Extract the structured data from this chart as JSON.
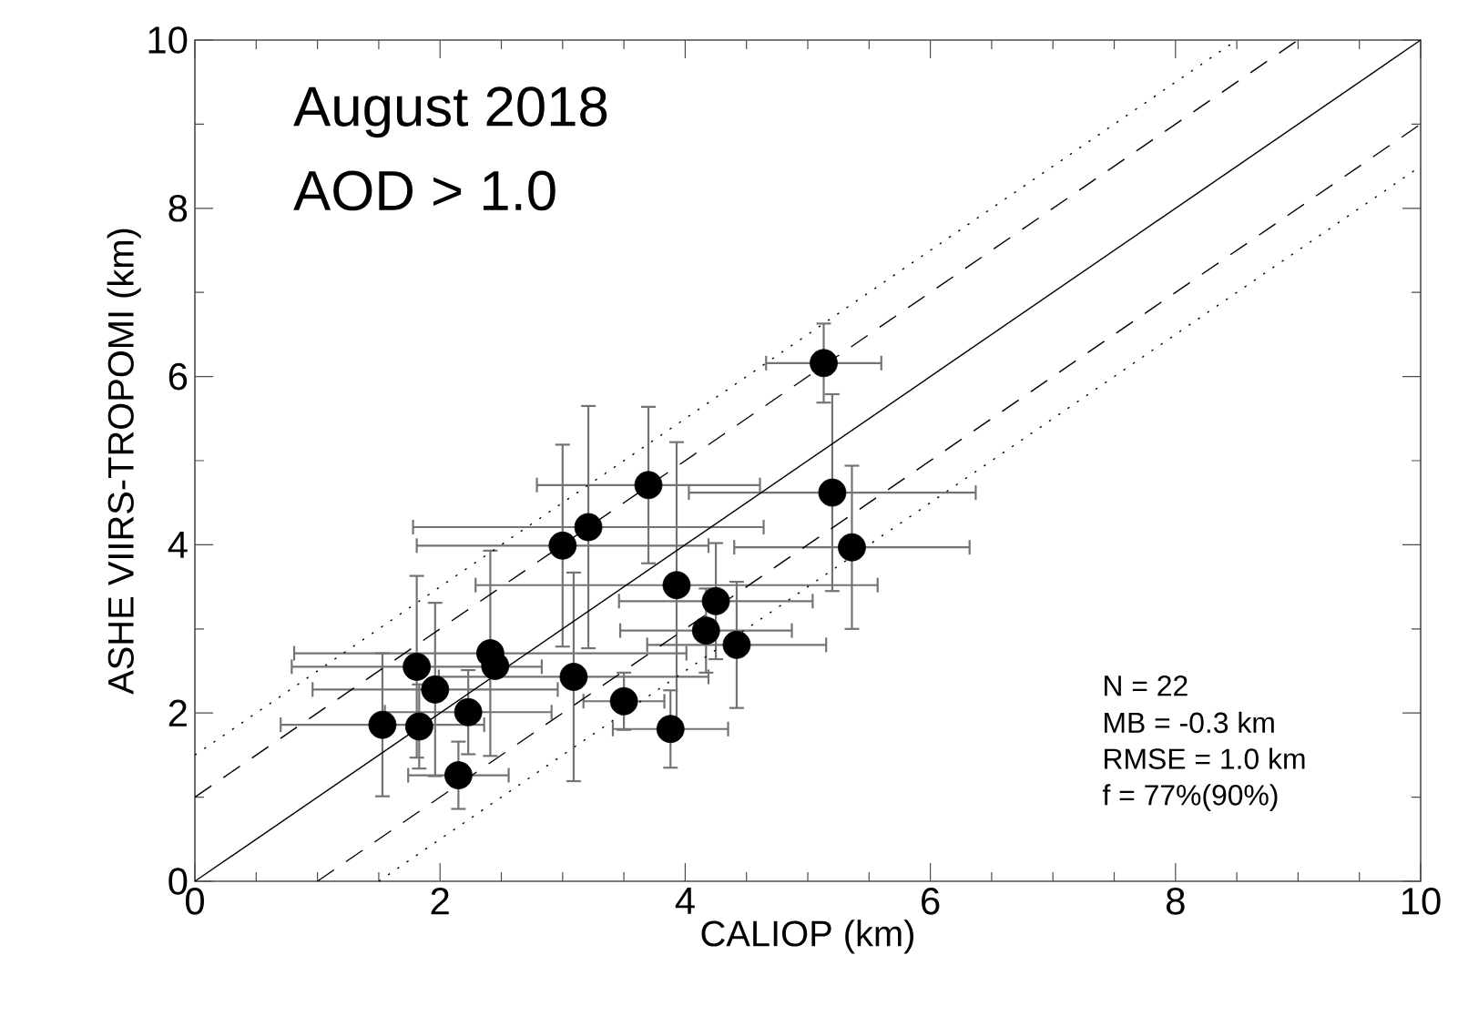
{
  "chart_data": {
    "type": "scatter",
    "xlabel": "CALIOP (km)",
    "ylabel": "ASHE VIIRS-TROPOMI (km)",
    "xlim": [
      0,
      10
    ],
    "ylim": [
      0,
      10
    ],
    "xticks": [
      0,
      2,
      4,
      6,
      8,
      10
    ],
    "yticks": [
      0,
      2,
      4,
      6,
      8,
      10
    ],
    "grid": false,
    "annotations": [
      "August 2018",
      "AOD > 1.0",
      "N = 22",
      "MB = -0.3 km",
      "RMSE = 1.0 km",
      "f = 77%(90%)"
    ],
    "series": [
      {
        "marker": "circle",
        "color": "#000000",
        "x": [
          5.13,
          3.7,
          3.21,
          3.0,
          5.2,
          5.36,
          3.93,
          4.25,
          4.17,
          4.42,
          3.09,
          3.5,
          3.88,
          2.41,
          2.45,
          1.81,
          1.96,
          2.23,
          1.53,
          1.83,
          2.15
        ],
        "values": [
          6.16,
          4.71,
          4.21,
          3.99,
          4.62,
          3.97,
          3.52,
          3.33,
          2.98,
          2.81,
          2.43,
          2.14,
          1.81,
          2.71,
          2.56,
          2.55,
          2.28,
          2.01,
          1.86,
          1.84,
          1.26
        ],
        "xerrors": [
          0.47,
          0.91,
          1.43,
          1.19,
          1.17,
          0.96,
          1.64,
          0.79,
          0.7,
          0.73,
          1.1,
          0.33,
          0.47,
          1.6,
          null,
          1.02,
          1.0,
          0.68,
          0.83,
          null,
          0.41
        ],
        "errors": [
          0.47,
          0.93,
          1.44,
          1.2,
          1.17,
          0.97,
          1.7,
          0.69,
          0.5,
          0.75,
          1.24,
          0.34,
          0.46,
          1.22,
          null,
          1.08,
          1.03,
          0.5,
          0.85,
          0.5,
          0.4
        ]
      },
      {
        "type": "line",
        "marker": "none",
        "color": "#000000",
        "line_style": "solid",
        "x": [
          0,
          10
        ],
        "values": [
          0,
          10
        ]
      },
      {
        "type": "line",
        "marker": "none",
        "color": "#000000",
        "line_style": "dashed",
        "x": [
          0,
          9
        ],
        "values": [
          1,
          10
        ]
      },
      {
        "type": "line",
        "marker": "none",
        "color": "#000000",
        "line_style": "dashed",
        "x": [
          1,
          10
        ],
        "values": [
          0,
          9
        ]
      },
      {
        "type": "line",
        "marker": "none",
        "color": "#000000",
        "line_style": "dotted",
        "x": [
          0,
          8.5
        ],
        "values": [
          1.5,
          10
        ]
      },
      {
        "type": "line",
        "marker": "none",
        "color": "#000000",
        "line_style": "dotted",
        "x": [
          1.5,
          10
        ],
        "values": [
          0,
          8.5
        ]
      }
    ]
  }
}
